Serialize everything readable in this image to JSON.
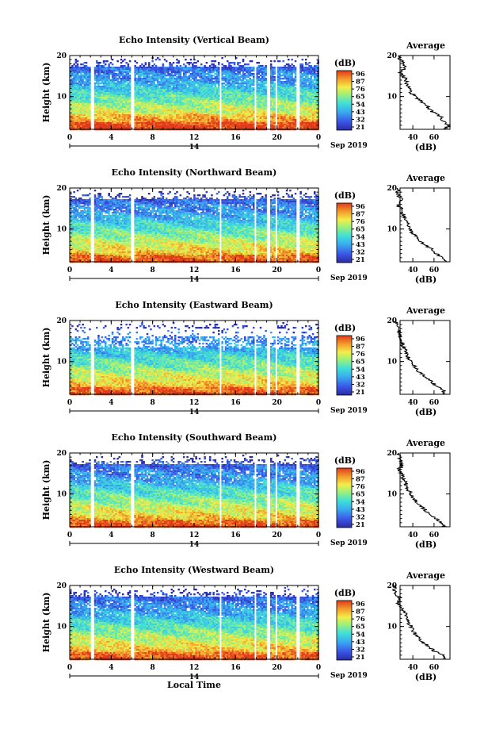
{
  "chart_data": [
    {
      "type": "heatmap",
      "title": "Echo Intensity (Vertical Beam)",
      "xlabel": "",
      "ylabel": "Height (km)",
      "x_ticks": [
        "0",
        "4",
        "8",
        "12",
        "16",
        "20",
        "0"
      ],
      "y_ticks": [
        "10",
        "20"
      ],
      "xlim": [
        0,
        24
      ],
      "ylim": [
        2,
        20
      ],
      "date_center": "14",
      "date_right": "Sep 2019",
      "colorbar": {
        "label": "(dB)",
        "ticks": [
          "96",
          "87",
          "76",
          "65",
          "54",
          "43",
          "32",
          "21"
        ]
      },
      "data_gaps_hours": [
        [
          2.0,
          2.25
        ],
        [
          5.8,
          6.1
        ],
        [
          14.3,
          14.6
        ],
        [
          17.7,
          17.9
        ],
        [
          19.0,
          19.2
        ],
        [
          19.7,
          19.9
        ],
        [
          21.8,
          22.1
        ]
      ],
      "average_profile": {
        "title": "Average",
        "xlabel": "(dB)",
        "x_ticks": [
          "40",
          "60"
        ],
        "y_ticks": [
          "10",
          "20"
        ],
        "height_km": [
          2,
          3,
          4,
          5,
          6,
          7,
          8,
          9,
          10,
          11,
          12,
          13,
          14,
          15,
          16,
          17,
          18,
          19,
          20
        ],
        "db": [
          70,
          74,
          68,
          67,
          60,
          55,
          53,
          47,
          42,
          38,
          36,
          34,
          34,
          31,
          28,
          33,
          32,
          28,
          26
        ]
      }
    },
    {
      "type": "heatmap",
      "title": "Echo Intensity (Northward Beam)",
      "xlabel": "",
      "ylabel": "Height (km)",
      "x_ticks": [
        "0",
        "4",
        "8",
        "12",
        "16",
        "20",
        "0"
      ],
      "y_ticks": [
        "10",
        "20"
      ],
      "xlim": [
        0,
        24
      ],
      "ylim": [
        2,
        20
      ],
      "date_center": "14",
      "date_right": "Sep 2019",
      "colorbar": {
        "label": "(dB)",
        "ticks": [
          "96",
          "87",
          "76",
          "65",
          "54",
          "43",
          "32",
          "21"
        ]
      },
      "data_gaps_hours": [
        [
          2.0,
          2.25
        ],
        [
          5.8,
          6.1
        ],
        [
          14.3,
          14.6
        ],
        [
          17.7,
          17.9
        ],
        [
          19.0,
          19.2
        ],
        [
          19.7,
          19.9
        ],
        [
          21.8,
          22.1
        ]
      ],
      "average_profile": {
        "title": "Average",
        "xlabel": "(dB)",
        "x_ticks": [
          "40",
          "60"
        ],
        "y_ticks": [
          "10",
          "20"
        ],
        "height_km": [
          2,
          3,
          4,
          5,
          6,
          7,
          8,
          9,
          10,
          11,
          12,
          13,
          14,
          15,
          16,
          17,
          18,
          19,
          20
        ],
        "db": [
          70,
          68,
          62,
          58,
          52,
          47,
          43,
          40,
          37,
          35,
          34,
          32,
          30,
          29,
          26,
          30,
          27,
          26,
          25
        ]
      }
    },
    {
      "type": "heatmap",
      "title": "Echo Intensity (Eastward Beam)",
      "xlabel": "",
      "ylabel": "Height (km)",
      "x_ticks": [
        "0",
        "4",
        "8",
        "12",
        "16",
        "20",
        "0"
      ],
      "y_ticks": [
        "10",
        "20"
      ],
      "xlim": [
        0,
        24
      ],
      "ylim": [
        2,
        20
      ],
      "date_center": "14",
      "date_right": "Sep 2019",
      "colorbar": {
        "label": "(dB)",
        "ticks": [
          "96",
          "87",
          "76",
          "65",
          "54",
          "43",
          "32",
          "21"
        ]
      },
      "data_gaps_hours": [
        [
          2.0,
          2.25
        ],
        [
          5.8,
          6.1
        ],
        [
          14.3,
          14.6
        ],
        [
          17.7,
          17.9
        ],
        [
          19.0,
          19.2
        ],
        [
          19.7,
          19.9
        ],
        [
          21.8,
          22.1
        ]
      ],
      "average_profile": {
        "title": "Average",
        "xlabel": "(dB)",
        "x_ticks": [
          "40",
          "60"
        ],
        "y_ticks": [
          "10",
          "20"
        ],
        "height_km": [
          2,
          3,
          4,
          5,
          6,
          7,
          8,
          9,
          10,
          11,
          12,
          13,
          14,
          15,
          16,
          17,
          18,
          19,
          20
        ],
        "db": [
          68,
          70,
          62,
          58,
          52,
          48,
          44,
          41,
          38,
          36,
          34,
          33,
          30,
          29,
          27,
          28,
          26,
          25,
          24
        ]
      }
    },
    {
      "type": "heatmap",
      "title": "Echo Intensity (Southward Beam)",
      "xlabel": "",
      "ylabel": "Height (km)",
      "x_ticks": [
        "0",
        "4",
        "8",
        "12",
        "16",
        "20",
        "0"
      ],
      "y_ticks": [
        "10",
        "20"
      ],
      "xlim": [
        0,
        24
      ],
      "ylim": [
        2,
        20
      ],
      "date_center": "14",
      "date_right": "Sep 2019",
      "colorbar": {
        "label": "(dB)",
        "ticks": [
          "96",
          "87",
          "76",
          "65",
          "54",
          "43",
          "32",
          "21"
        ]
      },
      "data_gaps_hours": [
        [
          2.0,
          2.25
        ],
        [
          5.8,
          6.1
        ],
        [
          14.3,
          14.6
        ],
        [
          17.7,
          17.9
        ],
        [
          19.0,
          19.2
        ],
        [
          19.7,
          19.9
        ],
        [
          21.8,
          22.1
        ]
      ],
      "average_profile": {
        "title": "Average",
        "xlabel": "(dB)",
        "x_ticks": [
          "40",
          "60"
        ],
        "y_ticks": [
          "10",
          "20"
        ],
        "height_km": [
          2,
          3,
          4,
          5,
          6,
          7,
          8,
          9,
          10,
          11,
          12,
          13,
          14,
          15,
          16,
          17,
          18,
          19,
          20
        ],
        "db": [
          70,
          66,
          62,
          57,
          52,
          48,
          44,
          41,
          38,
          36,
          34,
          33,
          31,
          29,
          27,
          30,
          28,
          27,
          26
        ]
      }
    },
    {
      "type": "heatmap",
      "title": "Echo Intensity (Westward Beam)",
      "xlabel": "Local Time",
      "ylabel": "Height (km)",
      "x_ticks": [
        "0",
        "4",
        "8",
        "12",
        "16",
        "20",
        "0"
      ],
      "y_ticks": [
        "10",
        "20"
      ],
      "xlim": [
        0,
        24
      ],
      "ylim": [
        2,
        20
      ],
      "date_center": "14",
      "date_right": "Sep 2019",
      "colorbar": {
        "label": "(dB)",
        "ticks": [
          "96",
          "87",
          "76",
          "65",
          "54",
          "43",
          "32",
          "21"
        ]
      },
      "data_gaps_hours": [
        [
          2.0,
          2.25
        ],
        [
          5.8,
          6.1
        ],
        [
          14.3,
          14.6
        ],
        [
          17.7,
          17.9
        ],
        [
          19.0,
          19.2
        ],
        [
          19.7,
          19.9
        ],
        [
          21.8,
          22.1
        ]
      ],
      "average_profile": {
        "title": "Average",
        "xlabel": "(dB)",
        "x_ticks": [
          "40",
          "60"
        ],
        "y_ticks": [
          "10",
          "20"
        ],
        "height_km": [
          2,
          3,
          4,
          5,
          6,
          7,
          8,
          9,
          10,
          11,
          12,
          13,
          14,
          15,
          16,
          17,
          18,
          19,
          20
        ],
        "db": [
          70,
          68,
          60,
          56,
          50,
          46,
          42,
          40,
          38,
          36,
          34,
          34,
          30,
          28,
          26,
          28,
          24,
          23,
          22
        ]
      }
    }
  ]
}
